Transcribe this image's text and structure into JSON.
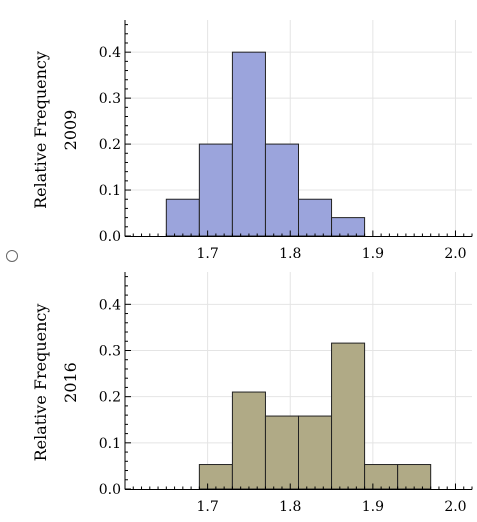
{
  "radio_option": {
    "selected": false
  },
  "chart_data": [
    {
      "type": "bar",
      "ylabel": "Relative Frequency",
      "ylabel2": "2009",
      "bin_edges": [
        1.65,
        1.69,
        1.73,
        1.77,
        1.81,
        1.85,
        1.89
      ],
      "values": [
        0.08,
        0.2,
        0.4,
        0.2,
        0.08,
        0.04
      ],
      "color": "#9ba4dc",
      "xlim": [
        1.6,
        2.02
      ],
      "ylim": [
        0,
        0.47
      ],
      "xticks": [
        1.7,
        1.8,
        1.9,
        2.0
      ],
      "xtick_labels": [
        "1.7",
        "1.8",
        "1.9",
        "2.0"
      ],
      "yticks": [
        0,
        0.1,
        0.2,
        0.3,
        0.4
      ],
      "ytick_labels": [
        "0.0",
        "0.1",
        "0.2",
        "0.3",
        "0.4"
      ],
      "grid": true
    },
    {
      "type": "bar",
      "ylabel": "Relative Frequency",
      "ylabel2": "2016",
      "bin_edges": [
        1.69,
        1.73,
        1.77,
        1.81,
        1.85,
        1.89,
        1.93,
        1.97
      ],
      "values": [
        0.053,
        0.21,
        0.158,
        0.158,
        0.316,
        0.053,
        0.053
      ],
      "color": "#b0aa86",
      "xlim": [
        1.6,
        2.02
      ],
      "ylim": [
        0,
        0.47
      ],
      "xticks": [
        1.7,
        1.8,
        1.9,
        2.0
      ],
      "xtick_labels": [
        "1.7",
        "1.8",
        "1.9",
        "2.0"
      ],
      "yticks": [
        0,
        0.1,
        0.2,
        0.3,
        0.4
      ],
      "ytick_labels": [
        "0.0",
        "0.1",
        "0.2",
        "0.3",
        "0.4"
      ],
      "grid": true
    }
  ]
}
